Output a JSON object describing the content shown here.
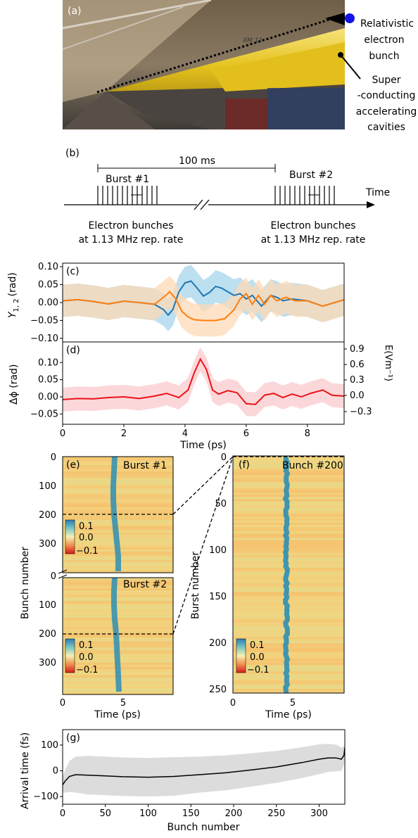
{
  "panels": {
    "a": {
      "label": "(a)",
      "annotations": {
        "bunch": [
          "Relativistic",
          "electron",
          "bunch"
        ],
        "cavities": [
          "Super",
          "-conducting",
          "accelerating",
          "cavities"
        ]
      },
      "module_text": "XM 11"
    },
    "b": {
      "label": "(b)",
      "interval_label": "100 ms",
      "burst1_label": "Burst #1",
      "burst2_label": "Burst #2",
      "axis_label": "Time",
      "caption1": [
        "Electron bunches",
        "at 1.13 MHz rep. rate"
      ],
      "caption2": [
        "Electron bunches",
        "at 1.13 MHz rep. rate"
      ]
    },
    "c": {
      "label": "(c)"
    },
    "d": {
      "label": "(d)"
    },
    "e": {
      "label": "(e)",
      "burst1": "Burst #1",
      "burst2": "Burst #2"
    },
    "f": {
      "label": "(f)",
      "bunch": "Bunch #200"
    },
    "g": {
      "label": "(g)"
    }
  },
  "chart_data": [
    {
      "panel": "c",
      "type": "line",
      "xlabel": "",
      "ylabel": "Y",
      "ylabel_sub": "1, 2",
      "ylabel_unit": "(rad)",
      "xlim": [
        0,
        9.2
      ],
      "ylim": [
        -0.11,
        0.11
      ],
      "yticks": [
        -0.1,
        -0.05,
        0.0,
        0.05,
        0.1
      ],
      "ytick_labels": [
        "−0.10",
        "−0.05",
        "0.00",
        "0.05",
        "0.10"
      ],
      "series": [
        {
          "color": "#1f77b4",
          "band_color": "#a6d5ea",
          "x": [
            0,
            0.5,
            1,
            1.5,
            2,
            2.5,
            3,
            3.3,
            3.45,
            3.6,
            3.8,
            4.0,
            4.2,
            4.4,
            4.6,
            4.8,
            5.0,
            5.2,
            5.4,
            5.6,
            5.8,
            6.0,
            6.2,
            6.5,
            6.8,
            7.0,
            7.2,
            7.5,
            8,
            8.5,
            9.2
          ],
          "y": [
            0.005,
            0.008,
            0.003,
            -0.004,
            0.004,
            0.0,
            -0.005,
            -0.02,
            -0.035,
            -0.02,
            0.03,
            0.055,
            0.06,
            0.04,
            0.018,
            0.028,
            0.045,
            0.04,
            0.03,
            0.02,
            0.025,
            0.01,
            0.02,
            -0.01,
            0.02,
            0.015,
            0.005,
            0.01,
            0.005,
            -0.01,
            0.008
          ]
        },
        {
          "color": "#ff7f0e",
          "band_color": "#fdd9b5",
          "x": [
            0,
            0.5,
            1,
            1.5,
            2,
            2.5,
            3,
            3.3,
            3.5,
            3.7,
            3.9,
            4.1,
            4.3,
            4.6,
            5.0,
            5.3,
            5.6,
            5.8,
            6.0,
            6.2,
            6.4,
            6.6,
            6.8,
            7.0,
            7.3,
            7.6,
            8,
            8.5,
            9.2
          ],
          "y": [
            0.005,
            0.008,
            0.003,
            -0.004,
            0.004,
            0.0,
            -0.005,
            0.015,
            0.03,
            0.01,
            -0.025,
            -0.04,
            -0.048,
            -0.05,
            -0.05,
            -0.045,
            -0.02,
            0.01,
            0.025,
            -0.005,
            0.02,
            -0.005,
            0.02,
            0.005,
            0.015,
            0.005,
            0.005,
            -0.01,
            0.008
          ]
        }
      ]
    },
    {
      "panel": "d",
      "type": "line",
      "xlabel": "Time (ps)",
      "ylabel": "Δϕ (rad)",
      "ylabel_right": "E(Vm⁻¹)",
      "xlim": [
        0,
        9.2
      ],
      "xticks": [
        0,
        2,
        4,
        6,
        8
      ],
      "ylim": [
        -0.08,
        0.16
      ],
      "yticks": [
        -0.05,
        0.0,
        0.05,
        0.1
      ],
      "ytick_labels": [
        "−0.05",
        "0.00",
        "0.05",
        "0.10"
      ],
      "yticks_right": [
        "−0.3",
        "0.0",
        "0.3",
        "0.6",
        "0.9"
      ],
      "series": [
        {
          "color": "#e8141a",
          "band_color": "#fbc9cc",
          "x": [
            0,
            0.5,
            1,
            1.5,
            2,
            2.5,
            3,
            3.4,
            3.8,
            4.1,
            4.3,
            4.5,
            4.7,
            4.9,
            5.1,
            5.4,
            5.7,
            6.0,
            6.3,
            6.6,
            6.9,
            7.2,
            7.5,
            7.8,
            8.1,
            8.5,
            8.8,
            9.2
          ],
          "y": [
            -0.008,
            -0.005,
            -0.006,
            -0.002,
            0.0,
            -0.005,
            0.002,
            0.01,
            -0.002,
            0.02,
            0.07,
            0.11,
            0.08,
            0.02,
            0.008,
            0.018,
            0.012,
            -0.02,
            -0.022,
            0.005,
            0.01,
            -0.002,
            0.008,
            0.0,
            0.01,
            0.02,
            0.005,
            0.002
          ]
        }
      ]
    },
    {
      "panel": "e",
      "type": "heatmap",
      "xlabel": "Time (ps)",
      "ylabel": "Bunch number",
      "xticks": [
        "0",
        "5"
      ],
      "yticks_top": [
        "0",
        "100",
        "200",
        "300"
      ],
      "yticks_bottom": [
        "0",
        "100",
        "200",
        "300"
      ],
      "colorbar_ticks": [
        "0.1",
        "0.0",
        "−0.1"
      ],
      "n_bunches": 330
    },
    {
      "panel": "f",
      "type": "heatmap",
      "xlabel": "Time (ps)",
      "ylabel": "Burst number",
      "xticks": [
        "0",
        "5"
      ],
      "yticks": [
        "0",
        "50",
        "100",
        "150",
        "200",
        "250"
      ],
      "colorbar_ticks": [
        "0.1",
        "0.0",
        "−0.1"
      ]
    },
    {
      "panel": "g",
      "type": "line",
      "xlabel": "Bunch number",
      "ylabel": "Arrival time (fs)",
      "xlim": [
        0,
        330
      ],
      "ylim": [
        -130,
        160
      ],
      "xticks": [
        0,
        50,
        100,
        150,
        200,
        250,
        300
      ],
      "yticks": [
        -100,
        0,
        100
      ],
      "ytick_labels": [
        "−100",
        "0",
        "100"
      ],
      "series": [
        {
          "color": "#000000",
          "band_color": "#dcdcdc",
          "x": [
            0,
            3,
            8,
            15,
            30,
            50,
            70,
            100,
            130,
            160,
            190,
            220,
            250,
            280,
            300,
            310,
            320,
            326,
            329,
            330
          ],
          "y": [
            -55,
            -40,
            -22,
            -15,
            -17,
            -20,
            -23,
            -25,
            -22,
            -15,
            -8,
            3,
            15,
            32,
            45,
            50,
            50,
            45,
            60,
            90
          ],
          "band_half_width": [
            30,
            45,
            60,
            70,
            75,
            75,
            75,
            75,
            75,
            70,
            68,
            65,
            62,
            60,
            58,
            55,
            52,
            45,
            35,
            30
          ]
        }
      ]
    }
  ]
}
